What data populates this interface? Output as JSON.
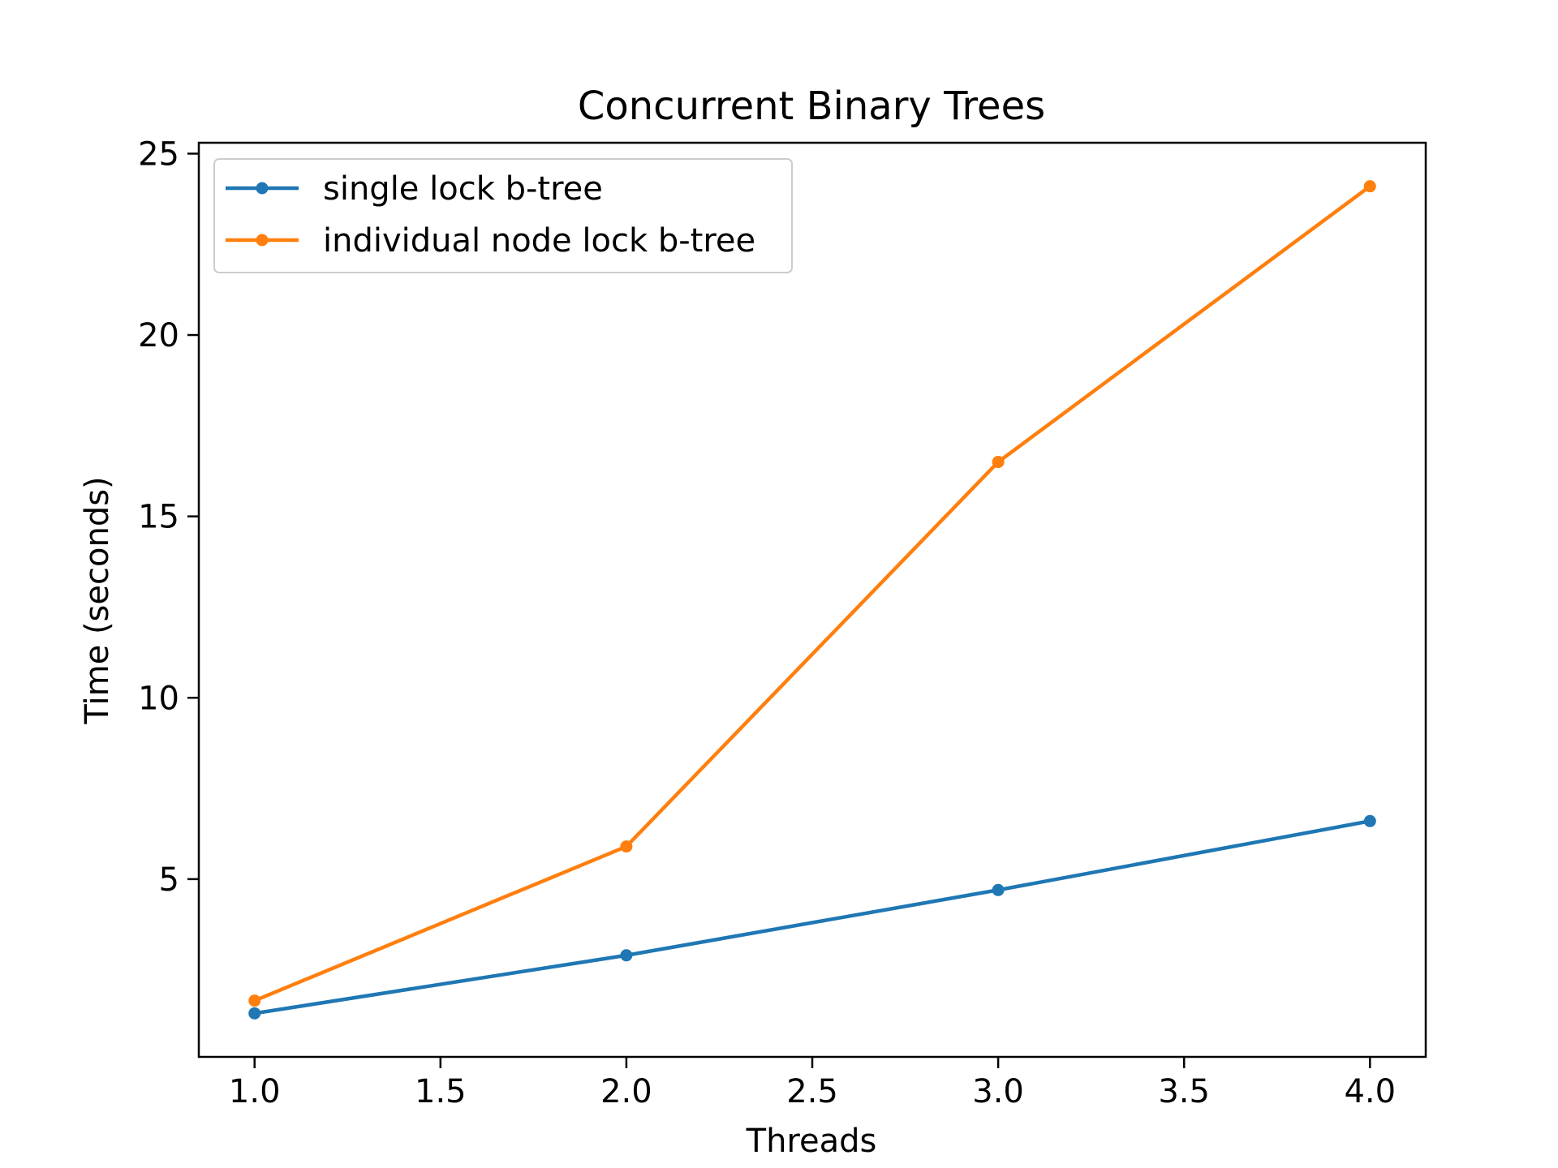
{
  "chart_data": {
    "type": "line",
    "title": "Concurrent Binary Trees",
    "xlabel": "Threads",
    "ylabel": "Time (seconds)",
    "xlim": [
      0.85,
      4.15
    ],
    "ylim": [
      0.1,
      25.3
    ],
    "xticks": [
      1.0,
      1.5,
      2.0,
      2.5,
      3.0,
      3.5,
      4.0
    ],
    "xtick_labels": [
      "1.0",
      "1.5",
      "2.0",
      "2.5",
      "3.0",
      "3.5",
      "4.0"
    ],
    "yticks": [
      5,
      10,
      15,
      20,
      25
    ],
    "ytick_labels": [
      "5",
      "10",
      "15",
      "20",
      "25"
    ],
    "grid": false,
    "legend_position": "upper-left",
    "series": [
      {
        "name": "single lock b-tree",
        "color": "#1f77b4",
        "x": [
          1,
          2,
          3,
          4
        ],
        "y": [
          1.3,
          2.9,
          4.7,
          6.6
        ]
      },
      {
        "name": "individual node lock b-tree",
        "color": "#ff7f0e",
        "x": [
          1,
          2,
          3,
          4
        ],
        "y": [
          1.65,
          5.9,
          16.5,
          24.1
        ]
      }
    ]
  }
}
